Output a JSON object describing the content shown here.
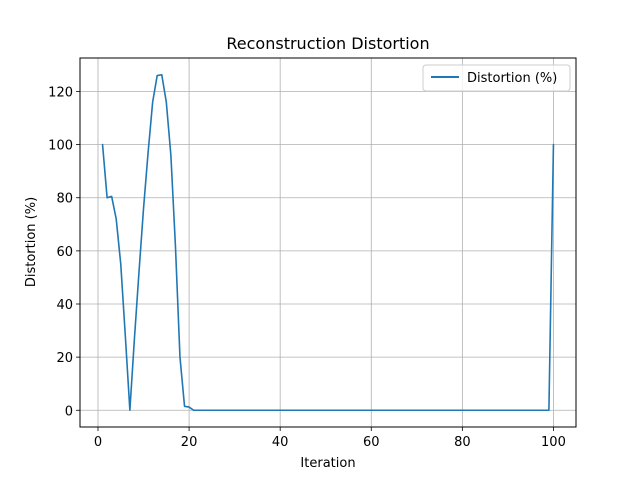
{
  "chart_data": {
    "type": "line",
    "title": "Reconstruction Distortion",
    "xlabel": "Iteration",
    "ylabel": "Distortion (%)",
    "xlim": [
      -3.95,
      104.95
    ],
    "ylim": [
      -6.3,
      132.6
    ],
    "xticks": [
      0,
      20,
      40,
      60,
      80,
      100
    ],
    "yticks": [
      0,
      20,
      40,
      60,
      80,
      100,
      120
    ],
    "grid": true,
    "legend_position": "upper right",
    "series": [
      {
        "name": "Distortion (%)",
        "color": "#1f77b4",
        "x": [
          1,
          2,
          3,
          4,
          5,
          6,
          7,
          8,
          9,
          10,
          11,
          12,
          13,
          14,
          15,
          16,
          17,
          18,
          19,
          20,
          21,
          22,
          23,
          24,
          25,
          26,
          27,
          28,
          29,
          30,
          31,
          32,
          33,
          34,
          35,
          36,
          37,
          38,
          39,
          40,
          41,
          42,
          43,
          44,
          45,
          46,
          47,
          48,
          49,
          50,
          51,
          52,
          53,
          54,
          55,
          56,
          57,
          58,
          59,
          60,
          61,
          62,
          63,
          64,
          65,
          66,
          67,
          68,
          69,
          70,
          71,
          72,
          73,
          74,
          75,
          76,
          77,
          78,
          79,
          80,
          81,
          82,
          83,
          84,
          85,
          86,
          87,
          88,
          89,
          90,
          91,
          92,
          93,
          94,
          95,
          96,
          97,
          98,
          99,
          100
        ],
        "values": [
          100,
          80,
          80.5,
          72,
          55,
          28,
          0,
          27,
          52,
          76,
          97,
          116,
          126,
          126.3,
          116,
          96,
          62,
          20,
          1.5,
          1.2,
          0,
          0,
          0,
          0,
          0,
          0,
          0,
          0,
          0,
          0,
          0,
          0,
          0,
          0,
          0,
          0,
          0,
          0,
          0,
          0,
          0,
          0,
          0,
          0,
          0,
          0,
          0,
          0,
          0,
          0,
          0,
          0,
          0,
          0,
          0,
          0,
          0,
          0,
          0,
          0,
          0,
          0,
          0,
          0,
          0,
          0,
          0,
          0,
          0,
          0,
          0,
          0,
          0,
          0,
          0,
          0,
          0,
          0,
          0,
          0,
          0,
          0,
          0,
          0,
          0,
          0,
          0,
          0,
          0,
          0,
          0,
          0,
          0,
          0,
          0,
          0,
          0,
          0,
          0,
          100
        ]
      }
    ]
  }
}
